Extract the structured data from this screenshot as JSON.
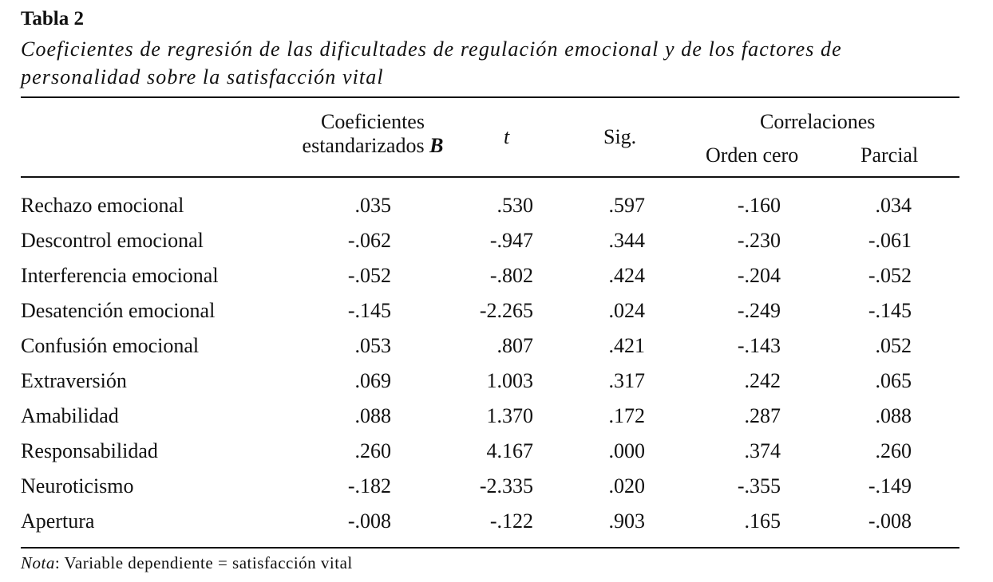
{
  "table": {
    "label": "Tabla 2",
    "caption": "Coeficientes de regresión de las dificultades de regulación emocional y de los factores de personalidad sobre la satisfacción vital",
    "headers": {
      "coef_line1": "Coeficientes",
      "coef_line2": "estandarizados",
      "coef_symbol": "B",
      "t": "t",
      "sig": "Sig.",
      "correlaciones": "Correlaciones",
      "orden_cero": "Orden cero",
      "parcial": "Parcial"
    },
    "rows": [
      {
        "label": "Rechazo emocional",
        "b": ".035",
        "t": ".530",
        "sig": ".597",
        "orden": "-.160",
        "parcial": ".034"
      },
      {
        "label": "Descontrol emocional",
        "b": "-.062",
        "t": "-.947",
        "sig": ".344",
        "orden": "-.230",
        "parcial": "-.061"
      },
      {
        "label": "Interferencia emocional",
        "b": "-.052",
        "t": "-.802",
        "sig": ".424",
        "orden": "-.204",
        "parcial": "-.052"
      },
      {
        "label": "Desatención emocional",
        "b": "-.145",
        "t": "-2.265",
        "sig": ".024",
        "orden": "-.249",
        "parcial": "-.145"
      },
      {
        "label": "Confusión emocional",
        "b": ".053",
        "t": ".807",
        "sig": ".421",
        "orden": "-.143",
        "parcial": ".052"
      },
      {
        "label": "Extraversión",
        "b": ".069",
        "t": "1.003",
        "sig": ".317",
        "orden": ".242",
        "parcial": ".065"
      },
      {
        "label": "Amabilidad",
        "b": ".088",
        "t": "1.370",
        "sig": ".172",
        "orden": ".287",
        "parcial": ".088"
      },
      {
        "label": "Responsabilidad",
        "b": ".260",
        "t": "4.167",
        "sig": ".000",
        "orden": ".374",
        "parcial": ".260"
      },
      {
        "label": "Neuroticismo",
        "b": "-.182",
        "t": "-2.335",
        "sig": ".020",
        "orden": "-.355",
        "parcial": "-.149"
      },
      {
        "label": "Apertura",
        "b": "-.008",
        "t": "-.122",
        "sig": ".903",
        "orden": ".165",
        "parcial": "-.008"
      }
    ],
    "note": {
      "prefix": "Nota",
      "text": ": Variable dependiente = satisfacción vital"
    }
  }
}
